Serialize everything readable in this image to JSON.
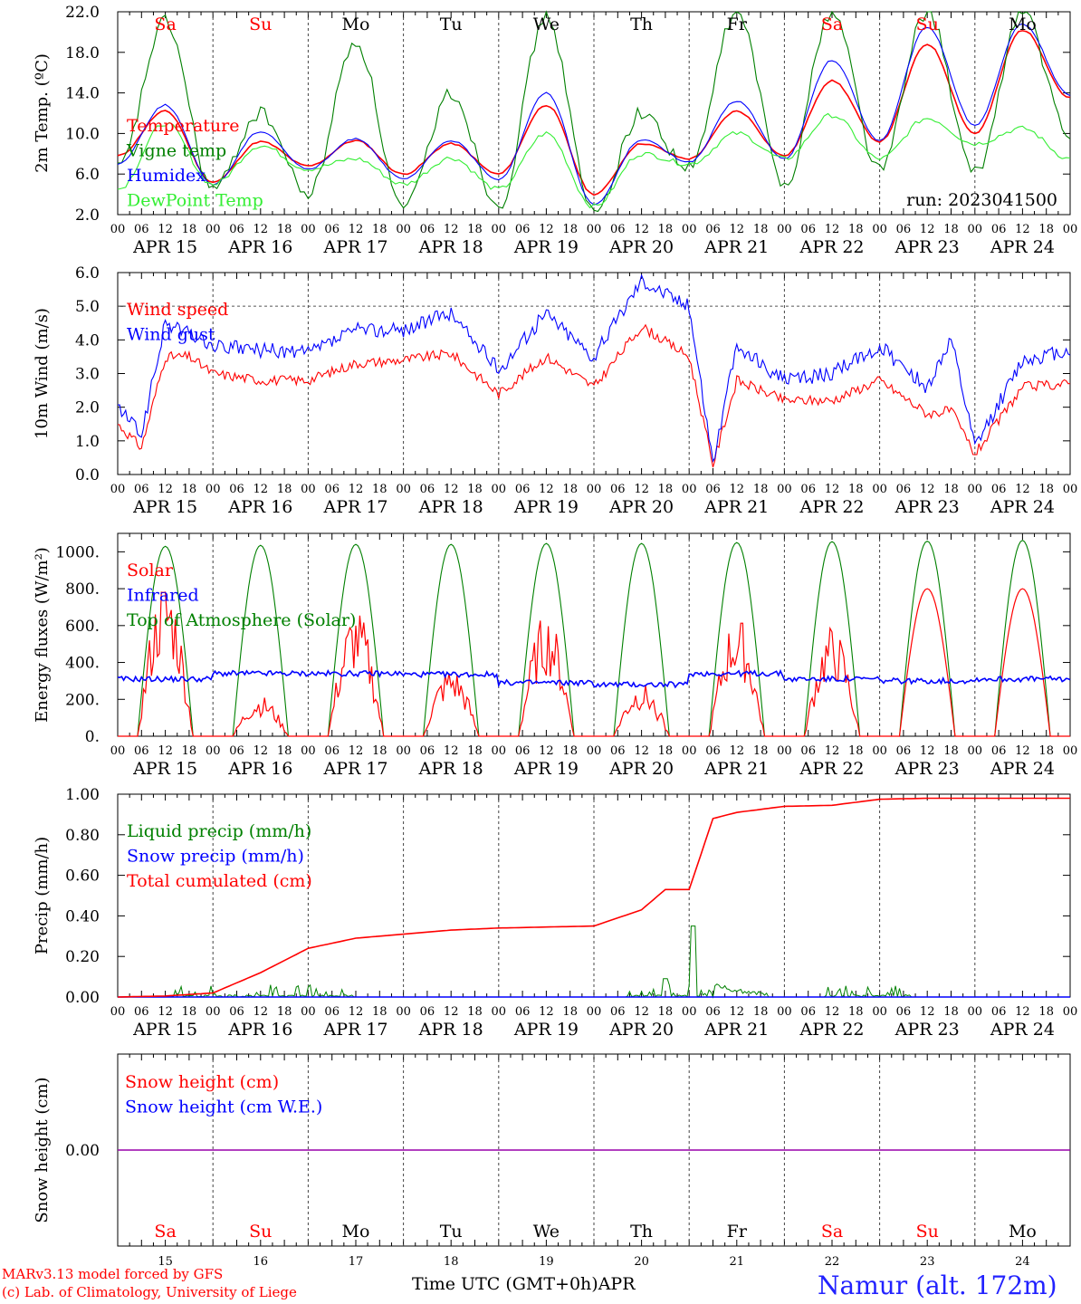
{
  "chart_data": [
    {
      "type": "line",
      "ylabel": "2m Temp. (ºC)",
      "ylim": [
        2,
        22
      ],
      "yticks": [
        "2.0",
        "6.0",
        "10.0",
        "14.0",
        "18.0",
        "22.0"
      ],
      "weekdays": [
        "Sa",
        "Su",
        "Mo",
        "Tu",
        "We",
        "Th",
        "Fr",
        "Sa",
        "Su",
        "Mo"
      ],
      "annotation": "run: 2023041500",
      "x_hours": [
        0,
        12,
        24,
        36,
        48,
        60,
        72,
        84,
        96,
        108,
        120,
        132,
        144,
        156,
        168,
        180,
        192,
        204,
        216,
        228,
        240
      ],
      "series": [
        {
          "name": "Temperature",
          "color": "#ff0000",
          "values": [
            7.8,
            12.2,
            5.2,
            9.2,
            6.8,
            9.3,
            6.0,
            9.0,
            6.0,
            12.8,
            4.0,
            9.0,
            7.5,
            12.2,
            7.8,
            15.2,
            9.2,
            18.8,
            10.0,
            20.2,
            13.5
          ]
        },
        {
          "name": "Vigne temp",
          "color": "#008000",
          "values": [
            6.5,
            21.0,
            4.5,
            12.0,
            4.0,
            19.0,
            2.5,
            14.0,
            3.0,
            21.5,
            2.2,
            12.0,
            6.5,
            22.0,
            5.0,
            22.0,
            6.5,
            22.0,
            6.0,
            22.0,
            9.5
          ]
        },
        {
          "name": "Humidex",
          "color": "#0000ff",
          "values": [
            7.0,
            12.8,
            5.0,
            10.2,
            6.5,
            9.5,
            5.5,
            9.3,
            5.5,
            14.0,
            3.0,
            9.4,
            7.2,
            13.2,
            7.5,
            17.2,
            9.3,
            20.5,
            10.8,
            20.8,
            13.8
          ]
        },
        {
          "name": "DewPoint Temp",
          "color": "#33ee33",
          "values": [
            4.5,
            11.0,
            5.0,
            8.8,
            6.5,
            7.5,
            5.0,
            7.6,
            4.5,
            10.0,
            2.8,
            8.0,
            7.0,
            10.0,
            7.5,
            11.8,
            7.5,
            11.5,
            9.0,
            10.5,
            7.5
          ]
        }
      ]
    },
    {
      "type": "line",
      "ylabel": "10m Wind (m/s)",
      "ylim": [
        0,
        6
      ],
      "yticks": [
        "0.0",
        "1.0",
        "2.0",
        "3.0",
        "4.0",
        "5.0",
        "6.0"
      ],
      "x_hours": [
        0,
        6,
        12,
        18,
        24,
        36,
        48,
        60,
        72,
        84,
        96,
        108,
        120,
        132,
        144,
        150,
        156,
        168,
        180,
        192,
        204,
        210,
        216,
        228,
        240
      ],
      "series": [
        {
          "name": "Wind speed",
          "color": "#ff0000",
          "values": [
            1.5,
            0.8,
            3.5,
            3.5,
            3.0,
            2.8,
            2.8,
            3.3,
            3.4,
            3.6,
            2.4,
            3.5,
            2.6,
            4.4,
            3.5,
            0.3,
            2.8,
            2.2,
            2.2,
            2.8,
            1.8,
            1.9,
            0.6,
            2.6,
            2.7
          ]
        },
        {
          "name": "Wind gust",
          "color": "#0000ff",
          "values": [
            2.0,
            1.2,
            4.5,
            4.2,
            3.8,
            3.7,
            3.6,
            4.3,
            4.3,
            4.8,
            3.1,
            4.8,
            3.5,
            5.8,
            5.0,
            0.4,
            3.8,
            2.8,
            3.0,
            3.8,
            2.6,
            4.0,
            0.8,
            3.4,
            3.7
          ]
        }
      ],
      "reference_line": 5.0
    },
    {
      "type": "line",
      "ylabel": "Energy fluxes (W/m²)",
      "ylim": [
        0,
        1100
      ],
      "yticks": [
        "0.",
        "200.",
        "400.",
        "600.",
        "800.",
        "1000."
      ],
      "series": [
        {
          "name": "Solar",
          "color": "#ff0000",
          "daily_peaks": [
            750,
            190,
            600,
            330,
            580,
            250,
            570,
            520,
            800,
            800
          ]
        },
        {
          "name": "Infrared",
          "color": "#0000ff",
          "daily_mean": [
            310,
            340,
            340,
            335,
            290,
            280,
            340,
            310,
            300,
            310
          ]
        },
        {
          "name": "Top of Atmosphere (Solar)",
          "color": "#008000",
          "daily_peaks": [
            1030,
            1035,
            1040,
            1040,
            1045,
            1045,
            1050,
            1055,
            1058,
            1062
          ]
        }
      ]
    },
    {
      "type": "line",
      "ylabel": "Precip (mm/h)",
      "ylim": [
        0,
        1
      ],
      "yticks": [
        "0.00",
        "0.20",
        "0.40",
        "0.60",
        "0.80",
        "1.00"
      ],
      "x_hours": [
        0,
        12,
        24,
        36,
        48,
        60,
        72,
        84,
        96,
        108,
        120,
        132,
        138,
        144,
        150,
        156,
        168,
        180,
        192,
        204,
        216,
        240
      ],
      "series": [
        {
          "name": "Liquid precip (mm/h)",
          "color": "#008000",
          "note": "hourly spikes, peak 0.35 at Apr 21 01h"
        },
        {
          "name": "Snow precip (mm/h)",
          "color": "#0000ff",
          "values": [
            0
          ]
        },
        {
          "name": "Total cumulated (cm)",
          "color": "#ff0000",
          "values": [
            0.0,
            0.005,
            0.02,
            0.12,
            0.24,
            0.29,
            0.31,
            0.33,
            0.34,
            0.345,
            0.35,
            0.43,
            0.53,
            0.53,
            0.88,
            0.91,
            0.94,
            0.945,
            0.975,
            0.98,
            0.98,
            0.98
          ]
        }
      ]
    },
    {
      "type": "line",
      "ylabel": "Snow height (cm)",
      "ytick": "0.00",
      "series": [
        {
          "name": "Snow height (cm)",
          "color": "#ff0000",
          "values": [
            0,
            0
          ]
        },
        {
          "name": "Snow height (cm W.E.)",
          "color": "#0000ff",
          "values": [
            0,
            0
          ]
        }
      ]
    }
  ],
  "axis": {
    "hour_labels": [
      "00",
      "06",
      "12",
      "18"
    ],
    "date_labels": [
      "APR 15",
      "APR 16",
      "APR 17",
      "APR 18",
      "APR 19",
      "APR 20",
      "APR 21",
      "APR 22",
      "APR 23",
      "APR 24"
    ],
    "bottom_weekdays": [
      "Sa",
      "Su",
      "Mo",
      "Tu",
      "We",
      "Th",
      "Fr",
      "Sa",
      "Su",
      "Mo"
    ],
    "bottom_days": [
      "15",
      "16",
      "17",
      "18",
      "19",
      "20",
      "21",
      "22",
      "23",
      "24"
    ],
    "weekend_color": "#ff0000",
    "weekday_color": "#000000"
  },
  "footer": {
    "credit_line1": "MARv3.13 model forced by GFS",
    "credit_line2": "(c) Lab. of Climatology, University of Liege",
    "xlabel": "Time UTC (GMT+0h)",
    "month": "APR",
    "station": "Namur (alt. 172m)"
  }
}
